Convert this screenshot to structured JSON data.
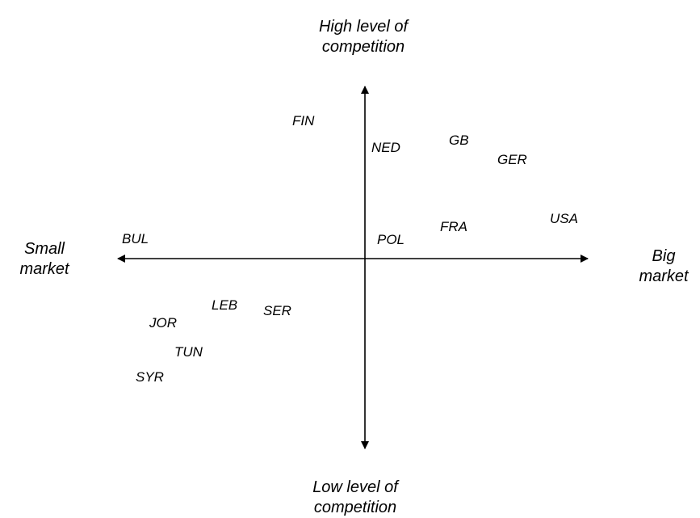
{
  "axes": {
    "top": [
      "High level of",
      "competition"
    ],
    "bottom": [
      "Low level of",
      "competition"
    ],
    "left": [
      "Small",
      "market"
    ],
    "right": [
      "Big",
      "market"
    ]
  },
  "countries": {
    "fin": "FIN",
    "ned": "NED",
    "gb": "GB",
    "ger": "GER",
    "usa": "USA",
    "fra": "FRA",
    "pol": "POL",
    "bul": "BUL",
    "leb": "LEB",
    "ser": "SER",
    "jor": "JOR",
    "tun": "TUN",
    "syr": "SYR"
  }
}
